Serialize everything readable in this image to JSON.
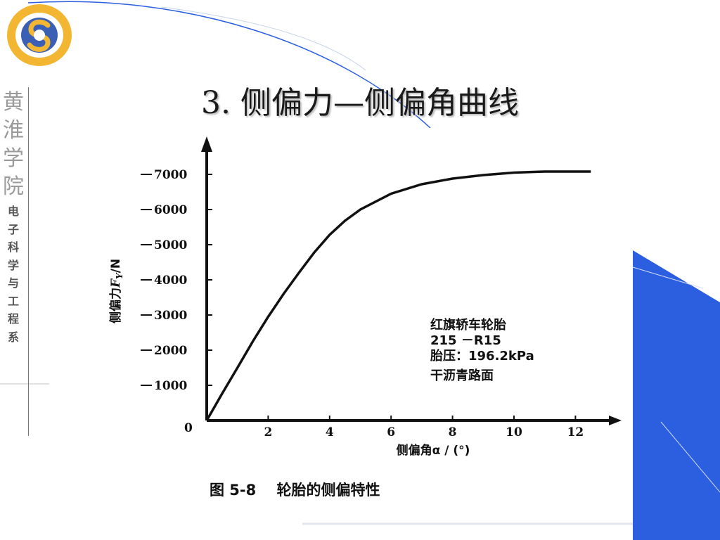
{
  "slide": {
    "title": "3. 侧偏力—侧偏角曲线",
    "side_calligraphy": [
      "黄",
      "淮",
      "学",
      "院"
    ],
    "side_department": [
      "电",
      "子",
      "科",
      "学",
      "与",
      "工",
      "程",
      "系"
    ],
    "logo_icon": "yellow-ring-with-s-logo",
    "colors": {
      "accent_blue": "#2b5fe0",
      "logo_yellow": "#f2b632",
      "logo_blue": "#3a5fb5"
    }
  },
  "chart_data": {
    "type": "line",
    "title": "",
    "caption": "图 5-8    轮胎的侧偏特性",
    "xlabel": "侧偏角α / (°)",
    "ylabel": "侧偏力F_Y/N",
    "ylabel_prefix": "侧偏力",
    "ylabel_suffix": "/N",
    "xlim": [
      0,
      13.5
    ],
    "ylim": [
      0,
      7700
    ],
    "x_ticks": [
      "2",
      "4",
      "6",
      "8",
      "10",
      "12"
    ],
    "y_ticks": [
      "1000",
      "2000",
      "3000",
      "4000",
      "5000",
      "6000",
      "7000"
    ],
    "origin_label": "0",
    "grid": false,
    "annotations": [
      "红旗轿车轮胎",
      "215 －R15",
      "胎压：196.2kPa",
      "干沥青路面"
    ],
    "series": [
      {
        "x": [
          0,
          0.5,
          1,
          1.5,
          2,
          2.5,
          3,
          3.5,
          4,
          4.5,
          5,
          6,
          7,
          8,
          9,
          10,
          11,
          12,
          12.5
        ],
        "values": [
          0,
          760,
          1500,
          2250,
          2950,
          3600,
          4200,
          4780,
          5280,
          5680,
          6000,
          6450,
          6720,
          6880,
          6980,
          7050,
          7080,
          7080,
          7080
        ]
      }
    ]
  }
}
